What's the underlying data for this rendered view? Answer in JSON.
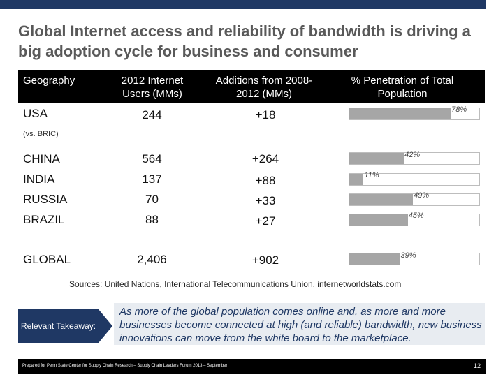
{
  "title": "Global Internet access and reliability of bandwidth is driving a big adoption cycle for business and consumer",
  "table": {
    "headers": {
      "geography": "Geography",
      "users": "2012 Internet Users (MMs)",
      "additions": "Additions from 2008-2012 (MMs)",
      "penetration": "% Penetration of Total Population"
    },
    "rows": [
      {
        "geo": "USA",
        "users": "244",
        "additions": "+18",
        "penetration_label": "78%",
        "penetration": 78
      },
      {
        "geo": "CHINA",
        "users": "564",
        "additions": "+264",
        "penetration_label": "42%",
        "penetration": 42
      },
      {
        "geo": "INDIA",
        "users": "137",
        "additions": "+88",
        "penetration_label": "11%",
        "penetration": 11
      },
      {
        "geo": "RUSSIA",
        "users": "70",
        "additions": "+33",
        "penetration_label": "49%",
        "penetration": 49
      },
      {
        "geo": "BRAZIL",
        "users": "88",
        "additions": "+27",
        "penetration_label": "45%",
        "penetration": 45
      },
      {
        "geo": "GLOBAL",
        "users": "2,406",
        "additions": "+902",
        "penetration_label": "39%",
        "penetration": 39
      }
    ],
    "subnote": "(vs. BRIC)"
  },
  "sources": "Sources:  United Nations, International Telecommunications Union, internetworldstats.com",
  "takeaway": {
    "label": "Relevant Takeaway:",
    "text": "As more of the global population comes online and, as more and more businesses become connected at high (and reliable) bandwidth, new business innovations can move from the white board to the marketplace."
  },
  "footer": {
    "text": "Prepared for Penn State Center for Supply Chain Research – Supply Chain Leaders Forum 2013 – September",
    "page": "12"
  },
  "colors": {
    "accent": "#1f3864",
    "bar": "#a6a6a6"
  }
}
